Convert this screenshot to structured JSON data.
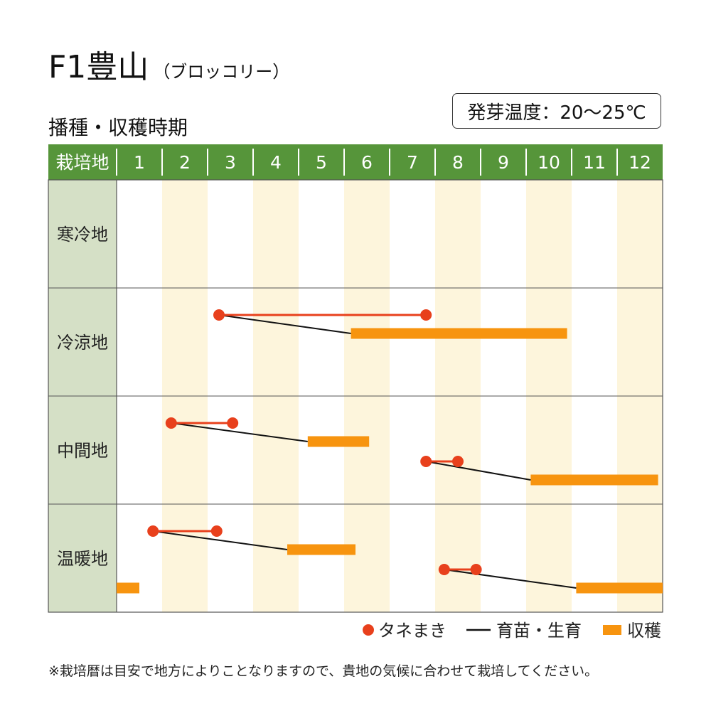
{
  "title": {
    "main": "F1豊山",
    "sub": "（ブロッコリー）"
  },
  "subtitle": "播種・収穫時期",
  "germination_temp": "発芽温度：20～25℃",
  "footnote": "※栽培暦は目安で地方によりことなりますので、貴地の気候に合わせて栽培してください。",
  "colors": {
    "header_bg": "#56953a",
    "header_text": "#ffffff",
    "region_bg": "#d5e0c6",
    "stripe": "#fdf5dc",
    "sowing": "#e8401c",
    "seedling": "#111111",
    "harvest": "#f7940f"
  },
  "chart_data": {
    "type": "gantt",
    "header_label": "栽培地",
    "months": [
      "1",
      "2",
      "3",
      "4",
      "5",
      "6",
      "7",
      "8",
      "9",
      "10",
      "11",
      "12"
    ],
    "regions": [
      {
        "name": "寒冷地",
        "schedules": []
      },
      {
        "name": "冷涼地",
        "schedules": [
          {
            "sowing": [
              3.25,
              7.8
            ],
            "harvest": [
              6.15,
              10.9
            ]
          }
        ]
      },
      {
        "name": "中間地",
        "schedules": [
          {
            "sowing": [
              2.2,
              3.55
            ],
            "harvest": [
              5.2,
              6.55
            ]
          },
          {
            "sowing": [
              7.8,
              8.5
            ],
            "harvest": [
              10.1,
              12.9
            ]
          }
        ]
      },
      {
        "name": "温暖地",
        "schedules": [
          {
            "sowing": [
              1.8,
              3.2
            ],
            "harvest": [
              4.75,
              6.25
            ]
          },
          {
            "sowing": [
              8.2,
              8.9
            ],
            "harvest": [
              11.1,
              13.0
            ]
          },
          {
            "harvest": [
              1.0,
              1.5
            ]
          }
        ]
      }
    ],
    "legend": [
      {
        "key": "sowing",
        "label": "タネまき"
      },
      {
        "key": "seedling",
        "label": "育苗・生育"
      },
      {
        "key": "harvest",
        "label": "収穫"
      }
    ]
  }
}
